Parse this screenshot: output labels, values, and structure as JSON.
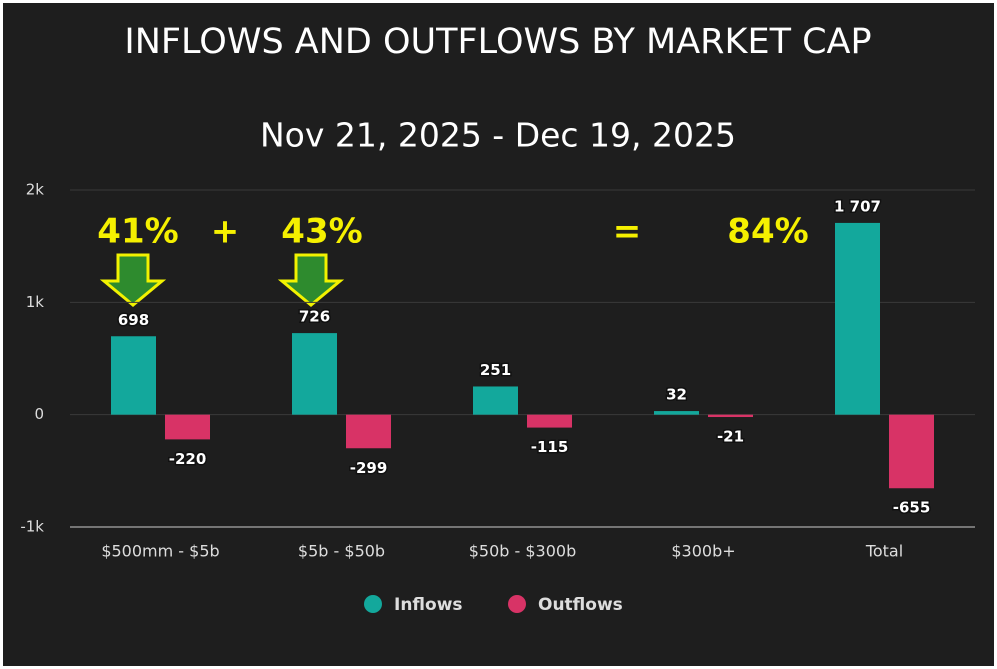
{
  "chart_data": {
    "type": "bar",
    "title": "INFLOWS AND OUTFLOWS BY MARKET CAP",
    "subtitle": "Nov 21, 2025 - Dec 19, 2025",
    "categories": [
      "$500mm - $5b",
      "$5b - $50b",
      "$50b - $300b",
      "$300b+",
      "Total"
    ],
    "series": [
      {
        "name": "Inflows",
        "color": "#13a89c",
        "values": [
          698,
          726,
          251,
          32,
          1707
        ],
        "value_labels": [
          "698",
          "726",
          "251",
          "32",
          "1 707"
        ]
      },
      {
        "name": "Outflows",
        "color": "#d83366",
        "values": [
          -220,
          -299,
          -115,
          -21,
          -655
        ]
      }
    ],
    "ylim": [
      -1000,
      2000
    ],
    "yticks": [
      {
        "value": -1000,
        "label": "-1k"
      },
      0,
      {
        "value": 1000,
        "label": "1k"
      },
      {
        "value": 2000,
        "label": "2k"
      }
    ],
    "grid": true,
    "legend": "bottom",
    "annotations": [
      "41%",
      "+",
      "43%",
      "=",
      "84%"
    ]
  }
}
